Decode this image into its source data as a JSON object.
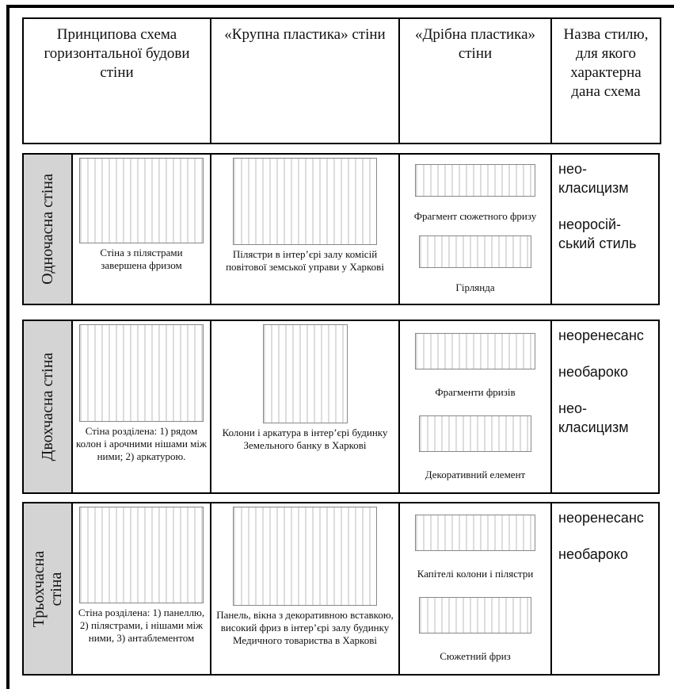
{
  "header": [
    "Принципова схема горизонтальної будови стіни",
    "«Крупна пластика» стіни",
    "«Дрібна пластика» стіни",
    "Назва стилю, для якого характерна дана схема"
  ],
  "sections": [
    {
      "label": "Одночасна стіна",
      "scheme_caption": "Стіна з пілястрами завершена фризом",
      "large_caption": "Пілястри в інтер’єрі залу комісій повітової земської управи у Харкові",
      "small_captions": [
        "Фрагмент сюжетного фризу",
        "Гірлянда"
      ],
      "styles": [
        "нео-класицизм",
        "неоросій-ський стиль"
      ]
    },
    {
      "label": "Двохчасна стіна",
      "scheme_caption": "Стіна розділена: 1) рядом колон і арочними нішами між ними; 2) аркатурою.",
      "large_caption": "Колони і аркатура в інтер’єрі будинку Земельного банку в Харкові",
      "small_captions": [
        "Фрагменти фризів",
        "Декоративний елемент"
      ],
      "styles": [
        "неоренесанс",
        "необароко",
        "нео-класицизм"
      ]
    },
    {
      "label": "Трьохчасна стіна",
      "scheme_caption": "Стіна розділена: 1) панеллю, 2) пілястрами, і нішами між ними, 3) антаблементом",
      "large_caption": "Панель, вікна з декоративною вставкою, високий фриз в інтер’єрі залу будинку Медичного товариства в Харкові",
      "small_captions": [
        "Капітелі колони і пілястри",
        "Сюжетний фриз"
      ],
      "styles": [
        "неоренесанс",
        "необароко"
      ]
    }
  ]
}
